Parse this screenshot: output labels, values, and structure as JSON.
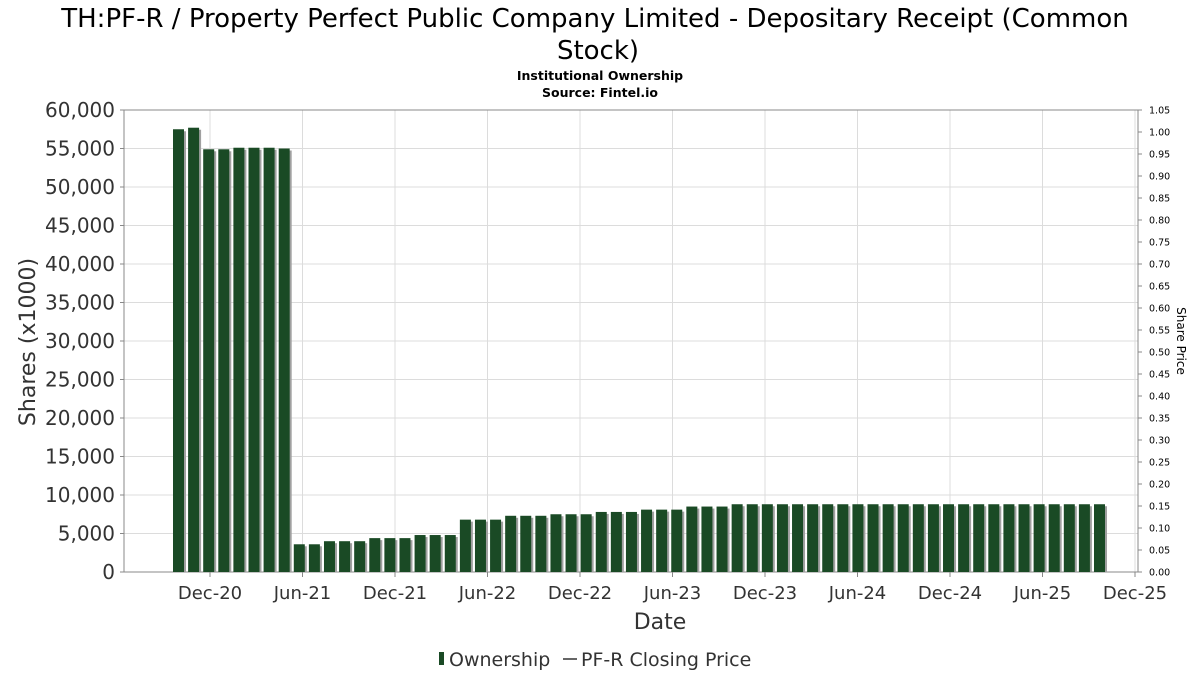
{
  "title_line1": "TH:PF-R / Property Perfect Public Company Limited - Depositary Receipt (Common",
  "title_line2": "Stock)",
  "subtitle_line1": "Institutional Ownership",
  "subtitle_line2": "Source: Fintel.io",
  "colors": {
    "bar": "#1a4a25",
    "bar_shadow": "#a0a0a0",
    "grid": "#dcdcdc"
  },
  "chart_data": {
    "type": "bar",
    "xlabel": "Date",
    "ylabel": "Shares (x1000)",
    "y2label": "Share Price",
    "ylim": [
      0,
      60000
    ],
    "y2lim": [
      0,
      1.05
    ],
    "yticks": [
      "0",
      "5,000",
      "10,000",
      "15,000",
      "20,000",
      "25,000",
      "30,000",
      "35,000",
      "40,000",
      "45,000",
      "50,000",
      "55,000",
      "60,000"
    ],
    "y2ticks": [
      "0.00",
      "0.05",
      "0.10",
      "0.15",
      "0.20",
      "0.25",
      "0.30",
      "0.35",
      "0.40",
      "0.45",
      "0.50",
      "0.55",
      "0.60",
      "0.65",
      "0.70",
      "0.75",
      "0.80",
      "0.85",
      "0.90",
      "0.95",
      "1.00",
      "1.05"
    ],
    "xticks": [
      "Dec-20",
      "Jun-21",
      "Dec-21",
      "Jun-22",
      "Dec-22",
      "Jun-23",
      "Dec-23",
      "Jun-24",
      "Dec-24",
      "Jun-25",
      "Dec-25"
    ],
    "grid": true,
    "legend_position": "bottom-center",
    "series": [
      {
        "name": "Ownership",
        "values": [
          57500,
          57700,
          54900,
          54900,
          55100,
          55100,
          55100,
          55000,
          3600,
          3600,
          4000,
          4000,
          4000,
          4400,
          4400,
          4400,
          4800,
          4800,
          4800,
          6800,
          6800,
          6800,
          7300,
          7300,
          7300,
          7500,
          7500,
          7500,
          7800,
          7800,
          7800,
          8100,
          8100,
          8100,
          8500,
          8500,
          8500,
          8800,
          8800,
          8800,
          8800,
          8800,
          8800,
          8800,
          8800,
          8800,
          8800,
          8800,
          8800,
          8800,
          8800,
          8800,
          8800,
          8800,
          8800,
          8800,
          8800,
          8800,
          8800,
          8800,
          8800,
          8800
        ]
      },
      {
        "name": "PF-R Closing Price",
        "values": []
      }
    ]
  }
}
